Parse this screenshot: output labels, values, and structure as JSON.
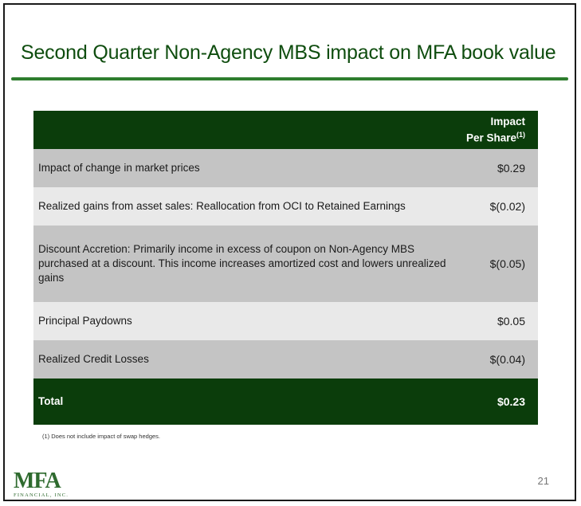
{
  "slide": {
    "title": "Second Quarter Non-Agency MBS impact on MFA book value",
    "page_number": "21",
    "footnote": "(1) Does not include impact of  swap hedges."
  },
  "table": {
    "header": {
      "line1": "Impact",
      "line2": "Per Share",
      "superscript": "(1)"
    },
    "rows": [
      {
        "label": "Impact of change in market prices",
        "value": "$0.29"
      },
      {
        "label": "Realized gains from asset sales: Reallocation from OCI to Retained Earnings",
        "value": "$(0.02)"
      },
      {
        "label": "Discount Accretion: Primarily income in excess of coupon on Non-Agency MBS purchased at a discount. This income increases amortized cost and lowers unrealized gains",
        "value": "$(0.05)"
      },
      {
        "label": "Principal Paydowns",
        "value": "$0.05"
      },
      {
        "label": "Realized Credit Losses",
        "value": "$(0.04)"
      }
    ],
    "total": {
      "label": "Total",
      "value": "$0.23"
    }
  },
  "logo": {
    "name": "MFA",
    "subtitle": "FINANCIAL, INC."
  },
  "colors": {
    "title": "#0f4d0f",
    "rule": "#2e7d2e",
    "header_bg": "#0b3d0b",
    "row_dark": "#c4c4c4",
    "row_light": "#e9e9e9"
  }
}
